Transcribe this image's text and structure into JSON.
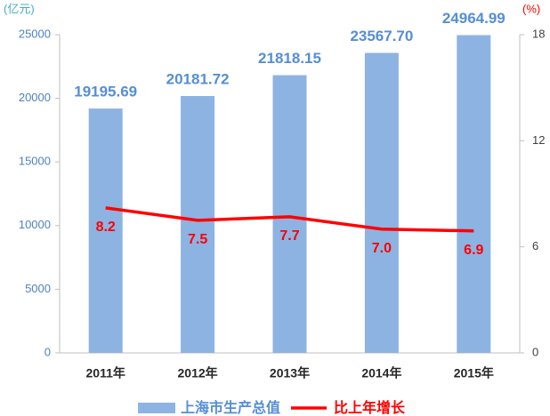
{
  "chart_data": {
    "type": "bar",
    "y_label": "(亿元)",
    "y2_label": "(%)",
    "categories": [
      "2011年",
      "2012年",
      "2013年",
      "2014年",
      "2015年"
    ],
    "series": [
      {
        "name": "上海市生产总值",
        "type": "bar",
        "color": "#8db3e2",
        "values": [
          19195.69,
          20181.72,
          21818.15,
          23567.7,
          24964.99
        ],
        "value_labels": [
          "19195.69",
          "20181.72",
          "21818.15",
          "23567.70",
          "24964.99"
        ]
      },
      {
        "name": "比上年增长",
        "type": "line",
        "axis": "y2",
        "color": "#ff0000",
        "values": [
          8.2,
          7.5,
          7.7,
          7.0,
          6.9
        ],
        "value_labels": [
          "8.2",
          "7.5",
          "7.7",
          "7.0",
          "6.9"
        ]
      }
    ],
    "ylim": [
      0,
      25000
    ],
    "yticks": [
      0,
      5000,
      10000,
      15000,
      20000,
      25000
    ],
    "y2lim": [
      0,
      18
    ],
    "y2ticks": [
      0,
      6,
      12,
      18
    ],
    "grid": false,
    "legend": "bottom"
  }
}
